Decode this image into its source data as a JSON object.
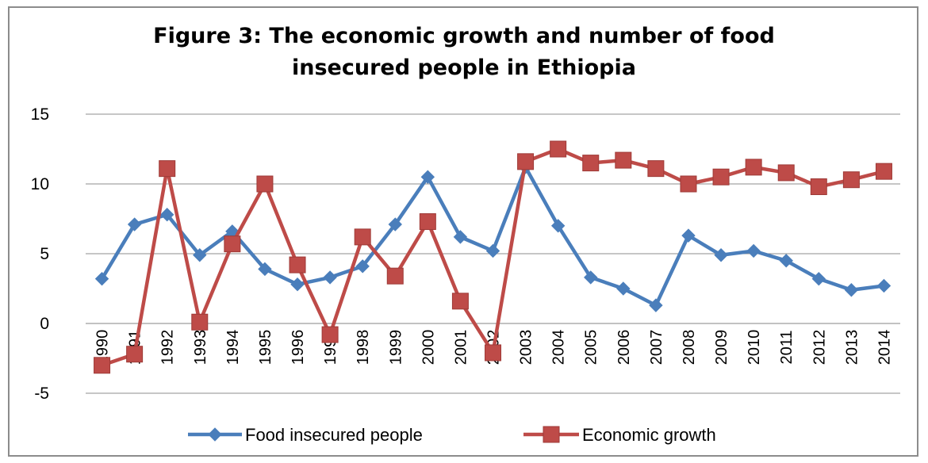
{
  "chart_data": {
    "type": "line",
    "title": "Figure  3: The economic growth and number of food\ninsecured people in Ethiopia",
    "xlabel": "",
    "ylabel": "",
    "ylim": [
      -5,
      15
    ],
    "yticks": [
      -5,
      0,
      5,
      10,
      15
    ],
    "grid": true,
    "legend_position": "bottom",
    "categories": [
      "1990",
      "1991",
      "1992",
      "1993",
      "1994",
      "1995",
      "1996",
      "1997",
      "1998",
      "1999",
      "2000",
      "2001",
      "2002",
      "2003",
      "2004",
      "2005",
      "2006",
      "2007",
      "2008",
      "2009",
      "2010",
      "2011",
      "2012",
      "2013",
      "2014"
    ],
    "series": [
      {
        "name": "Food insecured people",
        "color": "#4a7ebb",
        "marker": "diamond",
        "values": [
          3.2,
          7.1,
          7.8,
          4.9,
          6.6,
          3.9,
          2.8,
          3.3,
          4.1,
          7.1,
          10.5,
          6.2,
          5.2,
          11.2,
          7.0,
          3.3,
          2.5,
          1.3,
          6.3,
          4.9,
          5.2,
          4.5,
          3.2,
          2.4,
          2.7
        ]
      },
      {
        "name": "Economic growth",
        "color": "#be4b48",
        "marker": "square",
        "values": [
          -3.0,
          -2.2,
          11.1,
          0.1,
          5.7,
          10.0,
          4.2,
          -0.8,
          6.2,
          3.4,
          7.3,
          1.6,
          -2.1,
          11.6,
          12.5,
          11.5,
          11.7,
          11.1,
          10.0,
          10.5,
          11.2,
          10.8,
          9.8,
          10.3,
          10.9
        ]
      }
    ]
  }
}
